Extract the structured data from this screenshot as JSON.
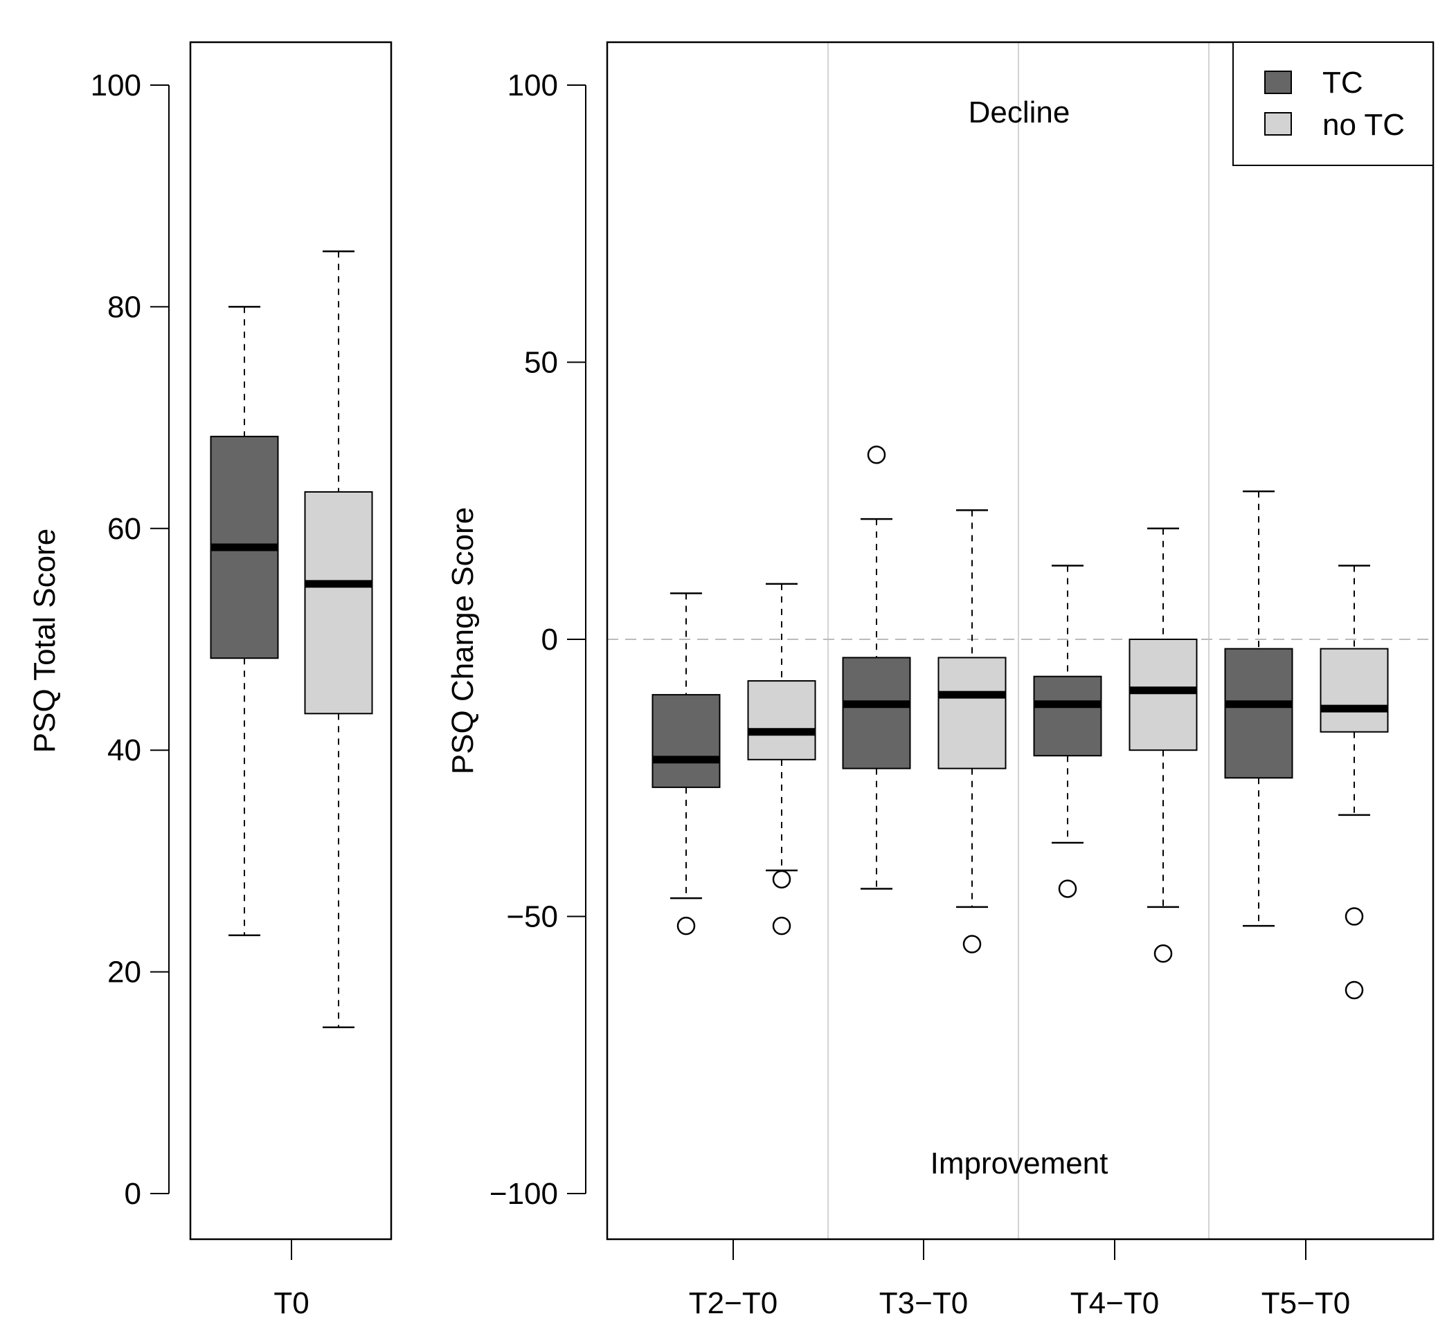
{
  "colors": {
    "tc": "#666666",
    "no_tc": "#d3d3d3",
    "stroke": "#000000",
    "separator": "#d3d3d3",
    "zero_line": "#bbbbbb"
  },
  "chart_data": [
    {
      "type": "boxplot",
      "ylabel": "PSQ Total Score",
      "ylim": [
        -8,
        108
      ],
      "yticks": [
        "0",
        "20",
        "40",
        "60",
        "80",
        "100"
      ],
      "categories": [
        "T0"
      ],
      "series": [
        {
          "name": "TC",
          "group": "T0",
          "whisker_low": 23.3,
          "q1": 48.3,
          "median": 58.3,
          "q3": 68.3,
          "whisker_high": 80,
          "outliers": []
        },
        {
          "name": "no TC",
          "group": "T0",
          "whisker_low": 15,
          "q1": 43.3,
          "median": 55,
          "q3": 63.3,
          "whisker_high": 85,
          "outliers": []
        }
      ]
    },
    {
      "type": "boxplot",
      "ylabel": "PSQ Change Score",
      "ylim": [
        -108,
        108
      ],
      "yticks": [
        "−100",
        "−50",
        "0",
        "50",
        "100"
      ],
      "categories": [
        "T2−T0",
        "T3−T0",
        "T4−T0",
        "T5−T0"
      ],
      "annotations": {
        "top": "Decline",
        "bottom": "Improvement"
      },
      "legend": {
        "position": "top-right",
        "entries": [
          "TC",
          "no TC"
        ]
      },
      "reference_line": 0,
      "series": [
        {
          "name": "TC",
          "group": "T2−T0",
          "whisker_low": -46.7,
          "q1": -26.7,
          "median": -21.7,
          "q3": -10,
          "whisker_high": 8.3,
          "outliers": [
            -51.7
          ]
        },
        {
          "name": "no TC",
          "group": "T2−T0",
          "whisker_low": -41.7,
          "q1": -21.7,
          "median": -16.7,
          "q3": -7.5,
          "whisker_high": 10,
          "outliers": [
            -43.3,
            -51.7
          ]
        },
        {
          "name": "TC",
          "group": "T3−T0",
          "whisker_low": -45,
          "q1": -23.3,
          "median": -11.7,
          "q3": -3.3,
          "whisker_high": 21.7,
          "outliers": [
            33.3
          ]
        },
        {
          "name": "no TC",
          "group": "T3−T0",
          "whisker_low": -48.3,
          "q1": -23.3,
          "median": -10,
          "q3": -3.3,
          "whisker_high": 23.3,
          "outliers": [
            -55
          ]
        },
        {
          "name": "TC",
          "group": "T4−T0",
          "whisker_low": -36.7,
          "q1": -21,
          "median": -11.7,
          "q3": -6.7,
          "whisker_high": 13.3,
          "outliers": [
            -45
          ]
        },
        {
          "name": "no TC",
          "group": "T4−T0",
          "whisker_low": -48.3,
          "q1": -20,
          "median": -9.2,
          "q3": 0,
          "whisker_high": 20,
          "outliers": [
            -56.7
          ]
        },
        {
          "name": "TC",
          "group": "T5−T0",
          "whisker_low": -51.7,
          "q1": -25,
          "median": -11.7,
          "q3": -1.7,
          "whisker_high": 26.7,
          "outliers": []
        },
        {
          "name": "no TC",
          "group": "T5−T0",
          "whisker_low": -31.7,
          "q1": -16.7,
          "median": -12.5,
          "q3": -1.7,
          "whisker_high": 13.3,
          "outliers": [
            -50,
            -63.3
          ]
        }
      ]
    }
  ]
}
